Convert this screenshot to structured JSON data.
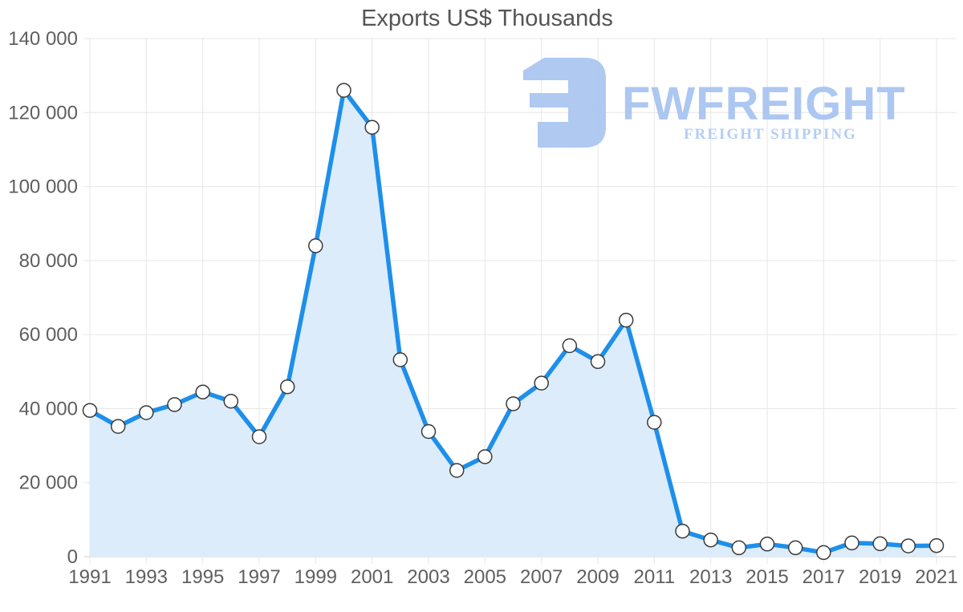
{
  "watermark": {
    "brand": "FWFREIGHT",
    "tagline": "FREIGHT SHIPPING",
    "logo_icon": "fwfreight-logo-glyph",
    "brand_color": "#a6c3f0",
    "tagline_color": "#aecaf2",
    "glyph_color": "#a9c5f0"
  },
  "colors": {
    "line": "#1e8fea",
    "area": "#dcecfb",
    "grid": "#e6e6e6",
    "axis": "#d0d0d0",
    "tick_label": "#5f5f5f",
    "title": "#555555",
    "marker_fill": "#ffffff",
    "marker_stroke": "#3a3a3a"
  },
  "chart_data": {
    "type": "area",
    "title": "Exports US$ Thousands",
    "series_name": "Exports",
    "x": [
      1991,
      1992,
      1993,
      1994,
      1995,
      1996,
      1997,
      1998,
      1999,
      2000,
      2001,
      2002,
      2003,
      2004,
      2005,
      2006,
      2007,
      2008,
      2009,
      2010,
      2011,
      2012,
      2013,
      2014,
      2015,
      2016,
      2017,
      2018,
      2019,
      2020,
      2021
    ],
    "values": [
      39500,
      35200,
      38900,
      41100,
      44500,
      42000,
      32400,
      45900,
      84000,
      126000,
      116000,
      53200,
      33800,
      23300,
      27000,
      41300,
      46900,
      57000,
      52700,
      63900,
      36300,
      6900,
      4500,
      2400,
      3400,
      2400,
      1100,
      3700,
      3500,
      2900,
      3000
    ],
    "xlim": [
      1991,
      2021
    ],
    "ylim": [
      0,
      140000
    ],
    "y_ticks": [
      0,
      20000,
      40000,
      60000,
      80000,
      100000,
      120000,
      140000
    ],
    "y_tick_labels": [
      "0",
      "20 000",
      "40 000",
      "60 000",
      "80 000",
      "100 000",
      "120 000",
      "140 000"
    ],
    "x_tick_years": [
      1991,
      1993,
      1995,
      1997,
      1999,
      2001,
      2003,
      2005,
      2007,
      2009,
      2011,
      2013,
      2015,
      2017,
      2019,
      2021
    ],
    "grid": true,
    "legend": "none",
    "marker": "circle"
  }
}
